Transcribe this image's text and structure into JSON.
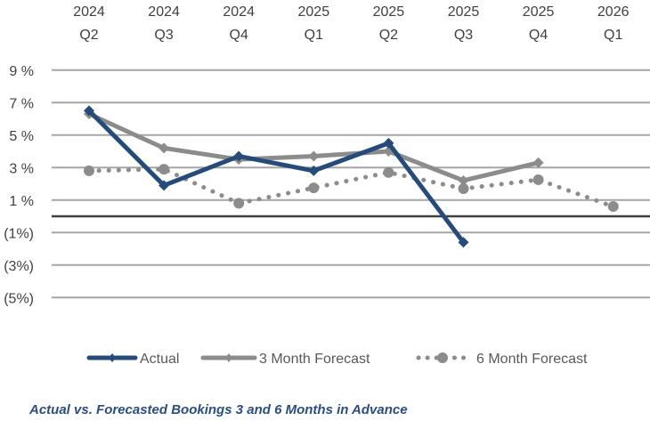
{
  "chart_data": {
    "type": "line",
    "title": "Actual vs. Forecasted Bookings 3 and 6 Months in Advance",
    "xlabel": "",
    "ylabel": "",
    "x_axis_position": "top",
    "categories": [
      [
        "2024",
        "Q2"
      ],
      [
        "2024",
        "Q3"
      ],
      [
        "2024",
        "Q4"
      ],
      [
        "2025",
        "Q1"
      ],
      [
        "2025",
        "Q2"
      ],
      [
        "2025",
        "Q3"
      ],
      [
        "2025",
        "Q4"
      ],
      [
        "2026",
        "Q1"
      ]
    ],
    "y_ticks": [
      9,
      7,
      5,
      3,
      1,
      -1,
      -3,
      -5
    ],
    "y_tick_labels": [
      "9 %",
      "7 %",
      "5 %",
      "3 %",
      "1 %",
      "(1%)",
      "(3%)",
      "(5%)"
    ],
    "ylim": [
      -6,
      9
    ],
    "grid": true,
    "legend_position": "bottom",
    "series": [
      {
        "name": "Actual",
        "color": "#264b7a",
        "style": "solid",
        "marker": "diamond",
        "values": [
          6.5,
          1.9,
          3.7,
          2.8,
          4.5,
          -1.6,
          null,
          null
        ]
      },
      {
        "name": "3 Month Forecast",
        "color": "#8c8c8c",
        "style": "solid",
        "marker": "diamond",
        "values": [
          6.3,
          4.2,
          3.5,
          3.7,
          4.0,
          2.2,
          3.3,
          null
        ]
      },
      {
        "name": "6 Month Forecast",
        "color": "#8c8c8c",
        "style": "dotted",
        "marker": "circle",
        "values": [
          2.8,
          2.9,
          0.8,
          1.75,
          2.7,
          1.7,
          2.25,
          0.6
        ]
      }
    ]
  }
}
